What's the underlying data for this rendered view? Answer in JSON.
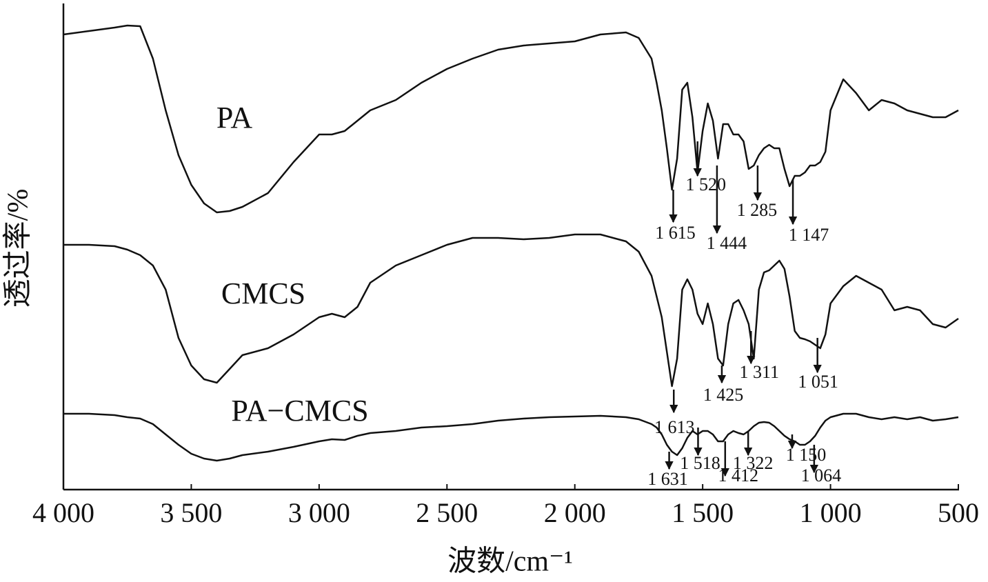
{
  "chart_data": {
    "type": "line",
    "x_label": "波数/cm⁻¹",
    "y_label": "透过率/%",
    "x": [
      4000,
      3900,
      3800,
      3750,
      3700,
      3650,
      3600,
      3550,
      3500,
      3450,
      3400,
      3350,
      3300,
      3200,
      3100,
      3000,
      2950,
      2900,
      2850,
      2800,
      2700,
      2600,
      2500,
      2400,
      2300,
      2200,
      2100,
      2000,
      1900,
      1800,
      1750,
      1700,
      1680,
      1660,
      1640,
      1620,
      1600,
      1580,
      1560,
      1540,
      1520,
      1500,
      1480,
      1460,
      1440,
      1420,
      1400,
      1380,
      1360,
      1340,
      1320,
      1300,
      1280,
      1260,
      1240,
      1220,
      1200,
      1180,
      1160,
      1140,
      1120,
      1100,
      1080,
      1060,
      1040,
      1020,
      1000,
      950,
      900,
      850,
      800,
      750,
      700,
      650,
      600,
      550,
      500
    ],
    "series": [
      {
        "name": "PA",
        "color": "#111111",
        "values": [
          660,
          665,
          670,
          673,
          672,
          625,
          550,
          485,
          442,
          415,
          402,
          404,
          410,
          430,
          475,
          515,
          515,
          520,
          535,
          550,
          565,
          590,
          610,
          625,
          638,
          644,
          647,
          650,
          660,
          663,
          655,
          625,
          590,
          550,
          495,
          435,
          480,
          580,
          590,
          540,
          460,
          520,
          560,
          535,
          480,
          530,
          530,
          515,
          515,
          505,
          465,
          470,
          485,
          495,
          500,
          495,
          495,
          465,
          440,
          455,
          455,
          460,
          470,
          470,
          475,
          490,
          550,
          595,
          575,
          550,
          565,
          560,
          550,
          545,
          540,
          540,
          550
        ]
      },
      {
        "name": "CMCS",
        "color": "#111111",
        "values": [
          355,
          355,
          353,
          348,
          340,
          325,
          290,
          220,
          180,
          160,
          155,
          175,
          195,
          205,
          225,
          250,
          255,
          250,
          265,
          300,
          325,
          340,
          355,
          365,
          365,
          363,
          365,
          370,
          370,
          360,
          345,
          310,
          280,
          250,
          200,
          150,
          190,
          290,
          305,
          290,
          255,
          240,
          270,
          240,
          190,
          180,
          240,
          270,
          275,
          260,
          240,
          190,
          290,
          315,
          318,
          325,
          332,
          320,
          280,
          230,
          220,
          218,
          215,
          210,
          205,
          225,
          270,
          295,
          310,
          300,
          290,
          260,
          265,
          260,
          240,
          235,
          248
        ]
      },
      {
        "name": "PA−CMCS",
        "color": "#111111",
        "values": [
          110,
          110,
          108,
          105,
          103,
          95,
          80,
          65,
          52,
          45,
          42,
          45,
          50,
          55,
          62,
          70,
          73,
          72,
          78,
          82,
          85,
          90,
          92,
          95,
          100,
          103,
          105,
          106,
          107,
          105,
          102,
          95,
          90,
          80,
          65,
          55,
          50,
          60,
          75,
          85,
          80,
          85,
          85,
          80,
          70,
          70,
          80,
          85,
          82,
          80,
          85,
          92,
          97,
          98,
          97,
          92,
          85,
          78,
          73,
          70,
          65,
          65,
          70,
          78,
          90,
          100,
          105,
          110,
          110,
          105,
          102,
          105,
          102,
          105,
          100,
          102,
          105
        ]
      }
    ],
    "xlim": [
      4000,
      500
    ],
    "xticks": [
      {
        "value": 4000,
        "label": "4 000"
      },
      {
        "value": 3500,
        "label": "3 500"
      },
      {
        "value": 3000,
        "label": "3 000"
      },
      {
        "value": 2500,
        "label": "2 500"
      },
      {
        "value": 2000,
        "label": "2 000"
      },
      {
        "value": 1500,
        "label": "1 500"
      },
      {
        "value": 1000,
        "label": "1 000"
      },
      500
    ],
    "ylim": [
      0,
      705
    ],
    "annotations": [
      {
        "text": "1 615",
        "x": 1615
      },
      {
        "text": "1 520",
        "x": 1520
      },
      {
        "text": "1 444",
        "x": 1444
      },
      {
        "text": "1 285",
        "x": 1285
      },
      {
        "text": "1 147",
        "x": 1147
      },
      {
        "text": "1 613",
        "x": 1613
      },
      {
        "text": "1 425",
        "x": 1425
      },
      {
        "text": "1 311",
        "x": 1311
      },
      {
        "text": "1 051",
        "x": 1051
      },
      {
        "text": "1 631",
        "x": 1631
      },
      {
        "text": "1 518",
        "x": 1518
      },
      {
        "text": "1 412",
        "x": 1412
      },
      {
        "text": "1 322",
        "x": 1322
      },
      {
        "text": "1 150",
        "x": 1150
      },
      {
        "text": "1 064",
        "x": 1064
      }
    ]
  }
}
